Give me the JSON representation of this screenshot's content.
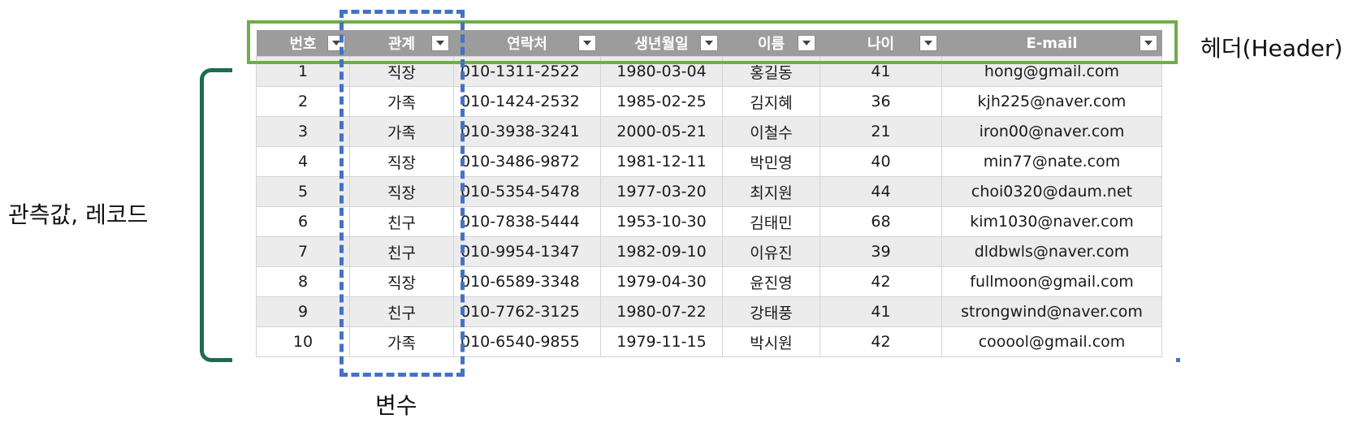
{
  "headers": [
    "번호",
    "관계",
    "연락처",
    "생년월일",
    "이름",
    "나이",
    "E-mail"
  ],
  "rows": [
    [
      "1",
      "직장",
      "010-1311-2522",
      "1980-03-04",
      "홍길동",
      "41",
      "hong@gmail.com"
    ],
    [
      "2",
      "가족",
      "010-1424-2532",
      "1985-02-25",
      "김지혜",
      "36",
      "kjh225@naver.com"
    ],
    [
      "3",
      "가족",
      "010-3938-3241",
      "2000-05-21",
      "이철수",
      "21",
      "iron00@naver.com"
    ],
    [
      "4",
      "직장",
      "010-3486-9872",
      "1981-12-11",
      "박민영",
      "40",
      "min77@nate.com"
    ],
    [
      "5",
      "직장",
      "010-5354-5478",
      "1977-03-20",
      "최지원",
      "44",
      "choi0320@daum.net"
    ],
    [
      "6",
      "친구",
      "010-7838-5444",
      "1953-10-30",
      "김태민",
      "68",
      "kim1030@naver.com"
    ],
    [
      "7",
      "친구",
      "010-9954-1347",
      "1982-09-10",
      "이유진",
      "39",
      "dldbwls@naver.com"
    ],
    [
      "8",
      "직장",
      "010-6589-3348",
      "1979-04-30",
      "윤진영",
      "42",
      "fullmoon@gmail.com"
    ],
    [
      "9",
      "친구",
      "010-7762-3125",
      "1980-07-22",
      "강태풍",
      "41",
      "strongwind@naver.com"
    ],
    [
      "10",
      "가족",
      "010-6540-9855",
      "1979-11-15",
      "박시원",
      "42",
      "cooool@gmail.com"
    ]
  ],
  "annotations": {
    "header": "헤더(Header)",
    "record": "관측값, 레코드",
    "variable": "변수"
  },
  "colors": {
    "header_box": "#70ad47",
    "variable_box": "#4472c4",
    "bracket": "#1e6b52",
    "header_fill": "#9c9c9c",
    "stripe": "#ececec"
  },
  "icons": {
    "filter": "dropdown-filter-icon"
  }
}
